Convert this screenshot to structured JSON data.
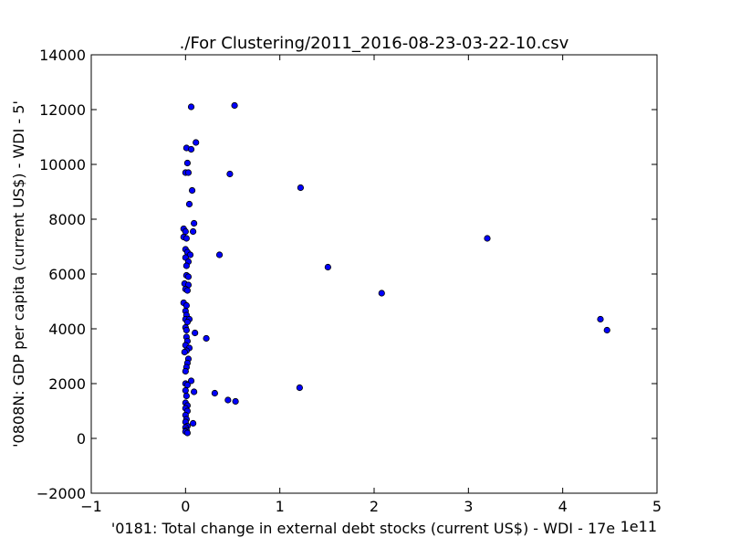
{
  "chart_data": {
    "type": "scatter",
    "title": "./For Clustering/2011_2016-08-23-03-22-10.csv",
    "xlabel": "'0181: Total change in external debt stocks  (current US$) - WDI - 17e",
    "ylabel": "'0808N: GDP per capita  (current US$) - WDI - 5'",
    "x_offset_label": "1e11",
    "xlim": [
      -1,
      5
    ],
    "ylim": [
      -2000,
      14000
    ],
    "x_ticks": [
      -1,
      0,
      1,
      2,
      3,
      4,
      5
    ],
    "y_ticks": [
      -2000,
      0,
      2000,
      4000,
      6000,
      8000,
      10000,
      12000,
      14000
    ],
    "x_tick_labels": [
      "−1",
      "0",
      "1",
      "2",
      "3",
      "4",
      "5"
    ],
    "y_tick_labels": [
      "−2000",
      "0",
      "2000",
      "4000",
      "6000",
      "8000",
      "10000",
      "12000",
      "14000"
    ],
    "grid": false,
    "marker_color": "#0000ff",
    "marker_edge_color": "#000000",
    "series": [
      {
        "points": [
          [
            0.06,
            12100
          ],
          [
            0.52,
            12150
          ],
          [
            0.11,
            10800
          ],
          [
            0.01,
            10600
          ],
          [
            0.06,
            10550
          ],
          [
            0.02,
            10050
          ],
          [
            0.0,
            9700
          ],
          [
            0.03,
            9700
          ],
          [
            0.47,
            9650
          ],
          [
            0.07,
            9050
          ],
          [
            1.22,
            9150
          ],
          [
            0.04,
            8550
          ],
          [
            0.09,
            7850
          ],
          [
            -0.02,
            7650
          ],
          [
            0.0,
            7550
          ],
          [
            0.08,
            7550
          ],
          [
            -0.02,
            7350
          ],
          [
            0.01,
            7300
          ],
          [
            3.2,
            7300
          ],
          [
            0.0,
            6900
          ],
          [
            0.02,
            6800
          ],
          [
            0.05,
            6700
          ],
          [
            0.36,
            6700
          ],
          [
            0.0,
            6600
          ],
          [
            0.03,
            6450
          ],
          [
            0.01,
            6300
          ],
          [
            1.51,
            6250
          ],
          [
            0.01,
            5950
          ],
          [
            0.03,
            5900
          ],
          [
            -0.01,
            5650
          ],
          [
            0.03,
            5600
          ],
          [
            0.0,
            5450
          ],
          [
            0.02,
            5400
          ],
          [
            2.08,
            5300
          ],
          [
            -0.02,
            4950
          ],
          [
            0.01,
            4850
          ],
          [
            0.0,
            4650
          ],
          [
            0.01,
            4500
          ],
          [
            0.0,
            4350
          ],
          [
            0.04,
            4350
          ],
          [
            0.02,
            4250
          ],
          [
            4.4,
            4350
          ],
          [
            4.47,
            3950
          ],
          [
            0.0,
            4050
          ],
          [
            0.01,
            3950
          ],
          [
            0.1,
            3850
          ],
          [
            0.22,
            3650
          ],
          [
            0.01,
            3700
          ],
          [
            0.02,
            3550
          ],
          [
            0.0,
            3400
          ],
          [
            0.04,
            3300
          ],
          [
            0.01,
            3200
          ],
          [
            -0.01,
            3150
          ],
          [
            0.03,
            2900
          ],
          [
            0.02,
            2750
          ],
          [
            0.01,
            2600
          ],
          [
            0.0,
            2450
          ],
          [
            0.06,
            2100
          ],
          [
            0.0,
            2000
          ],
          [
            0.02,
            1950
          ],
          [
            1.21,
            1850
          ],
          [
            0.0,
            1750
          ],
          [
            0.31,
            1650
          ],
          [
            0.09,
            1700
          ],
          [
            0.01,
            1550
          ],
          [
            0.45,
            1400
          ],
          [
            0.53,
            1350
          ],
          [
            0.0,
            1300
          ],
          [
            0.02,
            1200
          ],
          [
            0.0,
            1100
          ],
          [
            0.02,
            1000
          ],
          [
            0.0,
            850
          ],
          [
            0.01,
            700
          ],
          [
            0.0,
            600
          ],
          [
            0.08,
            550
          ],
          [
            0.02,
            450
          ],
          [
            0.0,
            400
          ],
          [
            0.01,
            300
          ],
          [
            0.0,
            250
          ],
          [
            0.02,
            200
          ]
        ]
      }
    ]
  }
}
